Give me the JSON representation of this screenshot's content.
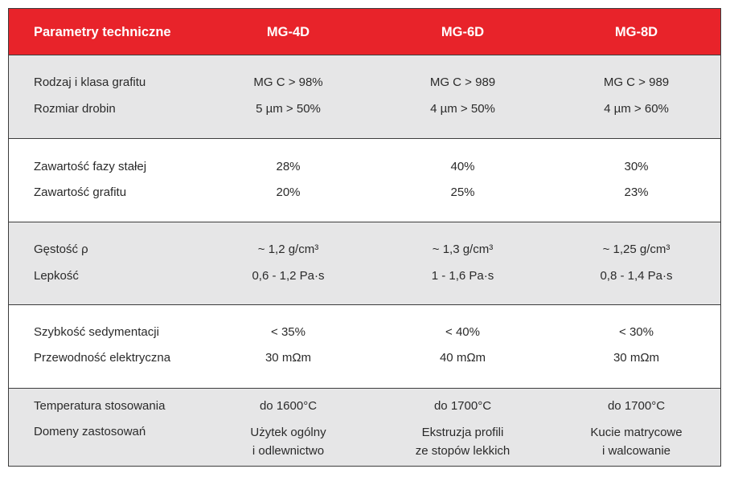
{
  "header": {
    "param_label": "Parametry techniczne",
    "col1": "MG-4D",
    "col2": "MG-6D",
    "col3": "MG-8D"
  },
  "colors": {
    "header_bg": "#e8232a",
    "gray_band": "#e6e6e7",
    "border": "#3c3c3c"
  },
  "rows": [
    {
      "label": "Rodzaj i klasa grafitu",
      "v1": "MG C > 98%",
      "v2": "MG C > 989",
      "v3": "MG C > 989"
    },
    {
      "label": "Rozmiar drobin",
      "v1": "5 µm > 50%",
      "v2": "4 µm > 50%",
      "v3": "4 µm > 60%"
    },
    {
      "label": "Zawartość fazy stałej",
      "v1": "28%",
      "v2": "40%",
      "v3": "30%"
    },
    {
      "label": "Zawartość grafitu",
      "v1": "20%",
      "v2": "25%",
      "v3": "23%"
    },
    {
      "label": "Gęstość ρ",
      "v1": "~ 1,2 g/cm³",
      "v2": "~ 1,3 g/cm³",
      "v3": "~ 1,25 g/cm³"
    },
    {
      "label": "Lepkość",
      "v1": "0,6 - 1,2 Pa·s",
      "v2": "1 - 1,6 Pa·s",
      "v3": "0,8 - 1,4 Pa·s"
    },
    {
      "label": "Szybkość sedymentacji",
      "v1": "< 35%",
      "v2": "< 40%",
      "v3": "< 30%"
    },
    {
      "label": "Przewodność elektryczna",
      "v1": "30 mΩm",
      "v2": "40 mΩm",
      "v3": "30 mΩm"
    },
    {
      "label": "Temperatura stosowania",
      "v1": "do 1600°C",
      "v2": "do 1700°C",
      "v3": "do 1700°C"
    },
    {
      "label": "Domeny zastosowań",
      "v1": "Użytek ogólny",
      "v2": "Ekstruzja profili",
      "v3": "Kucie matrycowe"
    },
    {
      "label": "",
      "v1": "i odlewnictwo",
      "v2": "ze stopów lekkich",
      "v3": "i walcowanie"
    }
  ]
}
